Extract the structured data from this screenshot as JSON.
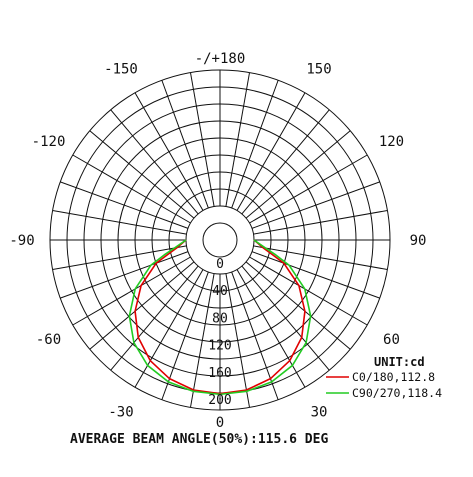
{
  "chart_data": {
    "type": "polar",
    "angle_labels": [
      {
        "text": "-/+180",
        "angle": 180
      },
      {
        "text": "-150",
        "angle": -150
      },
      {
        "text": "150",
        "angle": 150
      },
      {
        "text": "-120",
        "angle": -120
      },
      {
        "text": "120",
        "angle": 120
      },
      {
        "text": "-90",
        "angle": -90
      },
      {
        "text": "90",
        "angle": 90
      },
      {
        "text": "-60",
        "angle": -60
      },
      {
        "text": "60",
        "angle": 60
      },
      {
        "text": "-30",
        "angle": -30
      },
      {
        "text": "30",
        "angle": 30
      },
      {
        "text": "0",
        "angle": 0
      }
    ],
    "radial_ticks": [
      "0",
      "40",
      "80",
      "120",
      "160",
      "200"
    ],
    "radial_max": 200,
    "grid": true,
    "unit_label": "UNIT:cd",
    "series": [
      {
        "name": "C0/180,112.8",
        "color": "#e00000",
        "angles": [
          -90,
          -80,
          -75,
          -70,
          -60,
          -50,
          -40,
          -30,
          -20,
          -10,
          0,
          10,
          20,
          30,
          40,
          50,
          60,
          70,
          75,
          80,
          90
        ],
        "values": [
          0,
          14,
          28,
          50,
          84,
          113,
          137,
          155,
          167,
          174,
          176,
          174,
          167,
          155,
          137,
          113,
          84,
          50,
          28,
          14,
          0
        ]
      },
      {
        "name": "C90/270,118.4",
        "color": "#22cc22",
        "angles": [
          -90,
          -80,
          -75,
          -70,
          -60,
          -50,
          -40,
          -30,
          -20,
          -10,
          0,
          10,
          20,
          30,
          40,
          50,
          60,
          70,
          75,
          80,
          90
        ],
        "values": [
          0,
          18,
          35,
          58,
          94,
          124,
          147,
          163,
          172,
          176,
          177,
          176,
          172,
          163,
          147,
          124,
          94,
          58,
          35,
          18,
          0
        ]
      }
    ],
    "title": "AVERAGE BEAM ANGLE(50%):115.6 DEG"
  }
}
